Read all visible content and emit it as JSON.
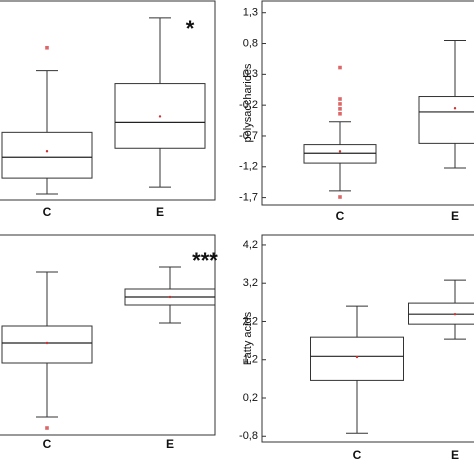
{
  "chart_data": [
    {
      "type": "box",
      "categories": [
        "C",
        "E"
      ],
      "annotation": "*",
      "ylim": [
        0,
        100
      ],
      "boxes": [
        {
          "min": 3,
          "q1": 11,
          "median": 21.5,
          "q3": 34,
          "max": 65,
          "mean": 24.5,
          "outliers": [
            76.5
          ]
        },
        {
          "min": 6.5,
          "q1": 26,
          "median": 39,
          "q3": 58.5,
          "max": 91.5,
          "mean": 42,
          "outliers": []
        }
      ]
    },
    {
      "type": "box",
      "categories": [
        "C",
        "E"
      ],
      "ylabel": "polysaccharides",
      "ylim": [
        -1.82,
        1.49
      ],
      "yticks": [
        {
          "value": 1.3,
          "label": "1,3"
        },
        {
          "value": 0.8,
          "label": "0,8"
        },
        {
          "value": 0.3,
          "label": "0,3"
        },
        {
          "value": -0.2,
          "label": "-0,2"
        },
        {
          "value": -0.7,
          "label": "-0,7"
        },
        {
          "value": -1.2,
          "label": "-1,2"
        },
        {
          "value": -1.7,
          "label": "-1,7"
        }
      ],
      "boxes": [
        {
          "min": -1.59,
          "q1": -1.14,
          "median": -0.98,
          "q3": -0.84,
          "max": -0.47,
          "mean": -0.95,
          "outliers": [
            0.41,
            -0.1,
            -0.18,
            -0.26,
            -0.34,
            -1.69
          ]
        },
        {
          "min": -1.22,
          "q1": -0.82,
          "median": -0.31,
          "q3": -0.06,
          "max": 0.85,
          "mean": -0.25,
          "outliers": []
        }
      ]
    },
    {
      "type": "box",
      "categories": [
        "C",
        "E"
      ],
      "annotation": "***",
      "ylim": [
        0,
        100
      ],
      "boxes": [
        {
          "min": 9,
          "q1": 36,
          "median": 46,
          "q3": 54.5,
          "max": 81.5,
          "mean": 46,
          "outliers": [
            3.5
          ]
        },
        {
          "min": 56,
          "q1": 65,
          "median": 69,
          "q3": 73,
          "max": 84,
          "mean": 69,
          "outliers": []
        }
      ]
    },
    {
      "type": "box",
      "categories": [
        "C",
        "E"
      ],
      "ylabel": "Fatty acids",
      "ylim": [
        -0.95,
        4.46
      ],
      "yticks": [
        {
          "value": 4.2,
          "label": "4,2"
        },
        {
          "value": 3.2,
          "label": "3,2"
        },
        {
          "value": 2.2,
          "label": "2,2"
        },
        {
          "value": 1.2,
          "label": "1,2"
        },
        {
          "value": 0.2,
          "label": "0,2"
        },
        {
          "value": -0.8,
          "label": "-0,8"
        }
      ],
      "boxes": [
        {
          "min": -0.72,
          "q1": 0.66,
          "median": 1.29,
          "q3": 1.79,
          "max": 2.6,
          "mean": 1.27,
          "outliers": []
        },
        {
          "min": 1.74,
          "q1": 2.13,
          "median": 2.39,
          "q3": 2.68,
          "max": 3.28,
          "mean": 2.39,
          "outliers": []
        }
      ]
    }
  ]
}
